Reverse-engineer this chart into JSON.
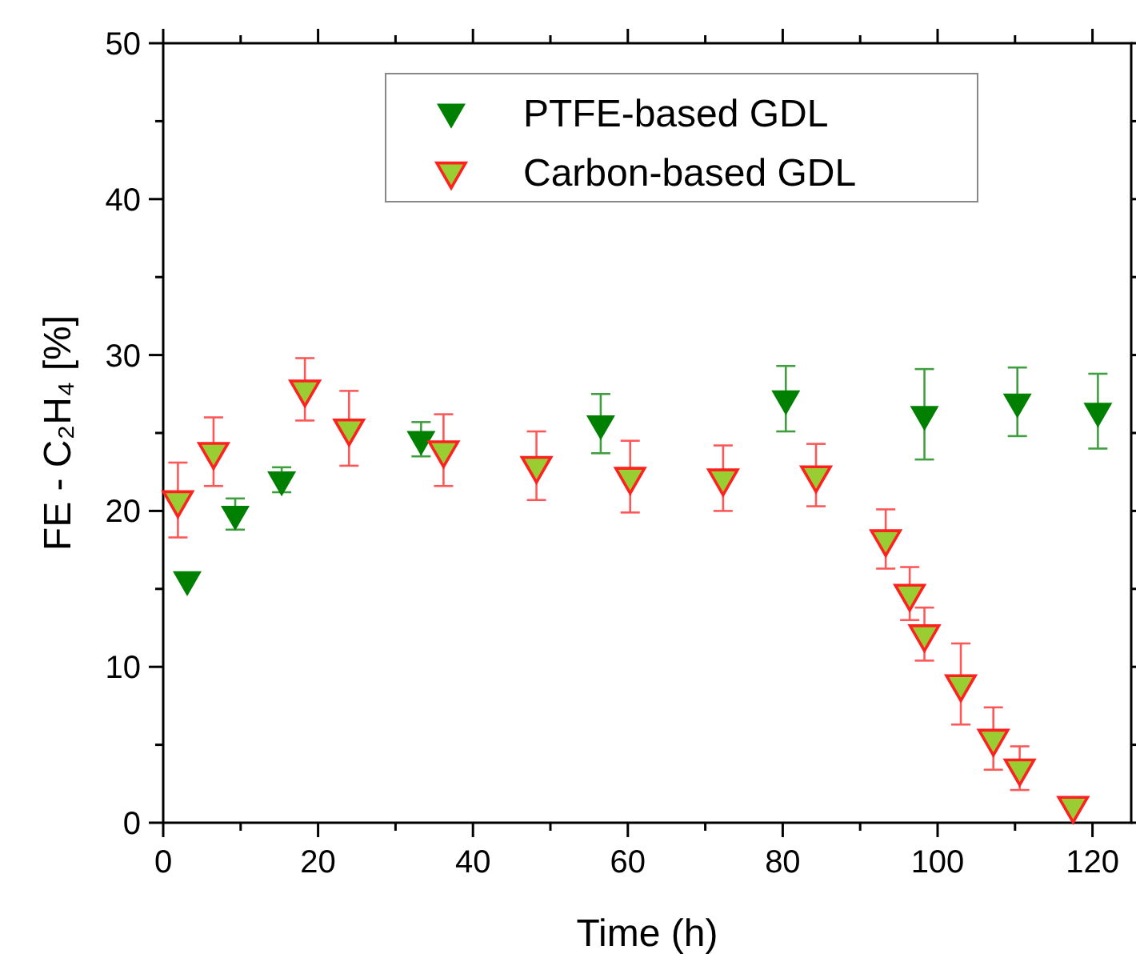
{
  "chart_data": {
    "type": "scatter",
    "xlabel": "Time (h)",
    "ylabel": "FE - C₂H₄ [%]",
    "xlim": [
      0,
      125
    ],
    "xticks": [
      0,
      {
        "value": 10,
        "label": null
      },
      20,
      {
        "value": 30,
        "label": null
      },
      40,
      {
        "value": 50,
        "label": null
      },
      60,
      {
        "value": 70,
        "label": null
      },
      80,
      {
        "value": 90,
        "label": null
      },
      100,
      {
        "value": 110,
        "label": null
      },
      120
    ],
    "ylim": [
      0,
      50
    ],
    "yticks": [
      0,
      {
        "value": 5,
        "label": null
      },
      10,
      {
        "value": 15,
        "label": null
      },
      20,
      {
        "value": 25,
        "label": null
      },
      30,
      {
        "value": 35,
        "label": null
      },
      40,
      {
        "value": 45,
        "label": null
      },
      50
    ],
    "marker": "triangle",
    "legend": "top",
    "grid": false,
    "series": [
      {
        "name": "PTFE-based GDL",
        "color": "#008000",
        "x": [
          3.1,
          9.3,
          15.3,
          33.3,
          56.5,
          80.4,
          98.3,
          110.3,
          120.7
        ],
        "values": [
          15.6,
          19.8,
          22.0,
          24.6,
          25.6,
          27.2,
          26.2,
          27.0,
          26.4
        ],
        "errors": [
          null,
          1.0,
          0.8,
          1.1,
          1.9,
          2.1,
          2.9,
          2.2,
          2.4
        ]
      },
      {
        "name": "Carbon-based GDL",
        "color": "#9acd32",
        "x": [
          1.9,
          6.5,
          18.3,
          24.0,
          36.2,
          48.2,
          60.3,
          72.3,
          84.3,
          93.3,
          96.4,
          98.3,
          103.0,
          107.2,
          110.6,
          117.5
        ],
        "values": [
          20.7,
          23.8,
          27.8,
          25.3,
          23.9,
          22.9,
          22.2,
          22.1,
          22.3,
          18.2,
          14.7,
          12.1,
          8.9,
          5.4,
          3.5,
          1.1
        ],
        "errors": [
          2.4,
          2.2,
          2.0,
          2.4,
          2.3,
          2.2,
          2.3,
          2.1,
          2.0,
          1.9,
          1.7,
          1.7,
          2.6,
          2.0,
          1.4,
          null
        ]
      }
    ]
  }
}
